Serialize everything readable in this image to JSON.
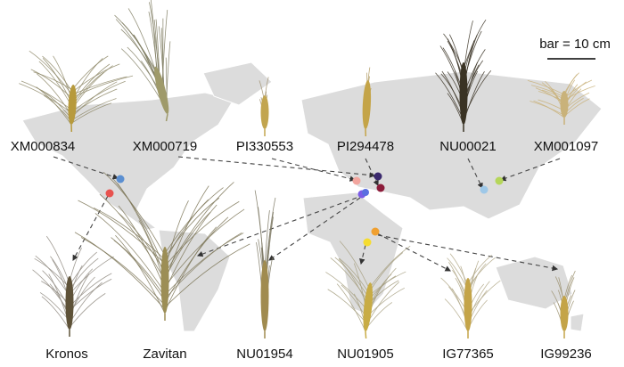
{
  "scale_bar": "bar = 10 cm",
  "top_row": [
    "XM000834",
    "XM000719",
    "PI330553",
    "PI294478",
    "NU00021",
    "XM001097"
  ],
  "bottom_row": [
    "Kronos",
    "Zavitan",
    "NU01954",
    "NU01905",
    "IG77365",
    "IG99236"
  ]
}
